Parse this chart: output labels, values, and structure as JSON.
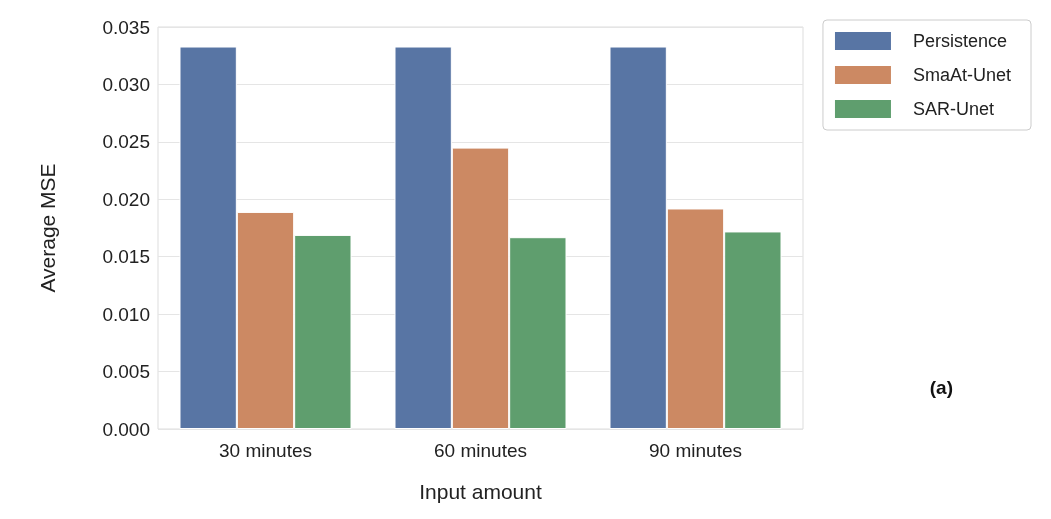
{
  "chart_data": {
    "type": "bar",
    "xlabel": "Input amount",
    "ylabel": "Average MSE",
    "categories": [
      "30 minutes",
      "60 minutes",
      "90 minutes"
    ],
    "series": [
      {
        "name": "Persistence",
        "color": "#5875a4",
        "values": [
          0.0333,
          0.0333,
          0.0333
        ]
      },
      {
        "name": "SmaAt-Unet",
        "color": "#cc8963",
        "values": [
          0.0189,
          0.0245,
          0.0192
        ]
      },
      {
        "name": "SAR-Unet",
        "color": "#5f9e6e",
        "values": [
          0.0169,
          0.0167,
          0.0172
        ]
      }
    ],
    "ylim": [
      0,
      0.035
    ],
    "yticks": [
      {
        "value": 0,
        "label": "0.000"
      },
      {
        "value": 0.005,
        "label": "0.005"
      },
      {
        "value": 0.01,
        "label": "0.010"
      },
      {
        "value": 0.015,
        "label": "0.015"
      },
      {
        "value": 0.02,
        "label": "0.020"
      },
      {
        "value": 0.025,
        "label": "0.025"
      },
      {
        "value": 0.03,
        "label": "0.030"
      },
      {
        "value": 0.035,
        "label": "0.035"
      }
    ],
    "grid": "y",
    "legend": "top right",
    "annotations": [
      "(a)"
    ]
  }
}
